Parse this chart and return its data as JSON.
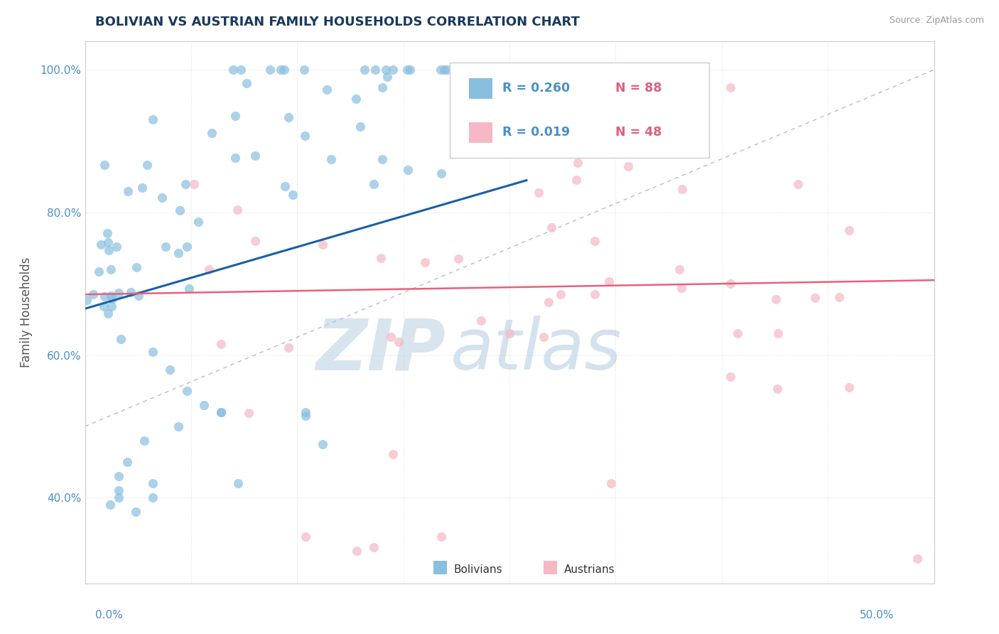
{
  "title": "BOLIVIAN VS AUSTRIAN FAMILY HOUSEHOLDS CORRELATION CHART",
  "source": "Source: ZipAtlas.com",
  "ylabel": "Family Households",
  "xlim": [
    0.0,
    0.5
  ],
  "ylim": [
    0.28,
    1.04
  ],
  "xtick_positions": [
    0.0,
    0.0625,
    0.125,
    0.1875,
    0.25,
    0.3125,
    0.375,
    0.4375,
    0.5
  ],
  "ytick_positions": [
    0.4,
    0.6,
    0.8,
    1.0
  ],
  "ytick_labels": [
    "40.0%",
    "60.0%",
    "80.0%",
    "100.0%"
  ],
  "R_bolivians": 0.26,
  "N_bolivians": 88,
  "R_austrians": 0.019,
  "N_austrians": 48,
  "bolivian_color": "#88bfdf",
  "austrian_color": "#f5b8c4",
  "trend_bolivian_color": "#1a5fa8",
  "trend_austrian_color": "#e8607a",
  "ref_line_color": "#9999cc",
  "background_color": "#ffffff",
  "grid_color": "#dddddd",
  "title_color": "#1a3a5c",
  "axis_label_color": "#4a90c4",
  "watermark_zip_color": "#b8cfe0",
  "watermark_atlas_color": "#a0c0d8",
  "legend_text_color": "#4a90c4",
  "legend_N_color": "#e05080",
  "axis_tick_color": "#4a90c4",
  "bottom_legend_color": "#333333"
}
